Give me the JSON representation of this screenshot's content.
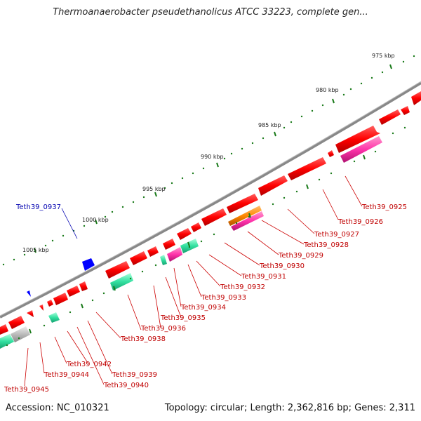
{
  "title": "Thermoanaerobacter pseudethanolicus ATCC 33223, complete gen...",
  "footer": {
    "accession": "Accession: NC_010321",
    "summary": "Topology: circular; Length: 2,362,816 bp; Genes: 2,311"
  },
  "ruler_labels": [
    "975 kbp",
    "980 kbp",
    "985 kbp",
    "990 kbp",
    "995 kbp",
    "1000 kbp",
    "1005 kbp"
  ],
  "colors": {
    "cds": "#ff0000",
    "backbone": "#808080",
    "tick": "#1a7a1a",
    "label_red": "#c00000",
    "label_blue": "#0000b0",
    "teal": "#33e0a0",
    "magenta": "#ff33aa",
    "orange": "#ff8800",
    "blue": "#0000ff",
    "gray": "#bbbbbb"
  },
  "gene_labels": [
    {
      "name": "Teth39_0937",
      "color": "blue"
    },
    {
      "name": "Teth39_0925",
      "color": "red"
    },
    {
      "name": "Teth39_0926",
      "color": "red"
    },
    {
      "name": "Teth39_0927",
      "color": "red"
    },
    {
      "name": "Teth39_0928",
      "color": "red"
    },
    {
      "name": "Teth39_0929",
      "color": "red"
    },
    {
      "name": "Teth39_0930",
      "color": "red"
    },
    {
      "name": "Teth39_0931",
      "color": "red"
    },
    {
      "name": "Teth39_0932",
      "color": "red"
    },
    {
      "name": "Teth39_0933",
      "color": "red"
    },
    {
      "name": "Teth39_0934",
      "color": "red"
    },
    {
      "name": "Teth39_0935",
      "color": "red"
    },
    {
      "name": "Teth39_0936",
      "color": "red"
    },
    {
      "name": "Teth39_0938",
      "color": "red"
    },
    {
      "name": "Teth39_0939",
      "color": "red"
    },
    {
      "name": "Teth39_0940",
      "color": "red"
    },
    {
      "name": "Teth39_0942",
      "color": "red"
    },
    {
      "name": "Teth39_0944",
      "color": "red"
    },
    {
      "name": "Teth39_0945",
      "color": "red"
    }
  ]
}
